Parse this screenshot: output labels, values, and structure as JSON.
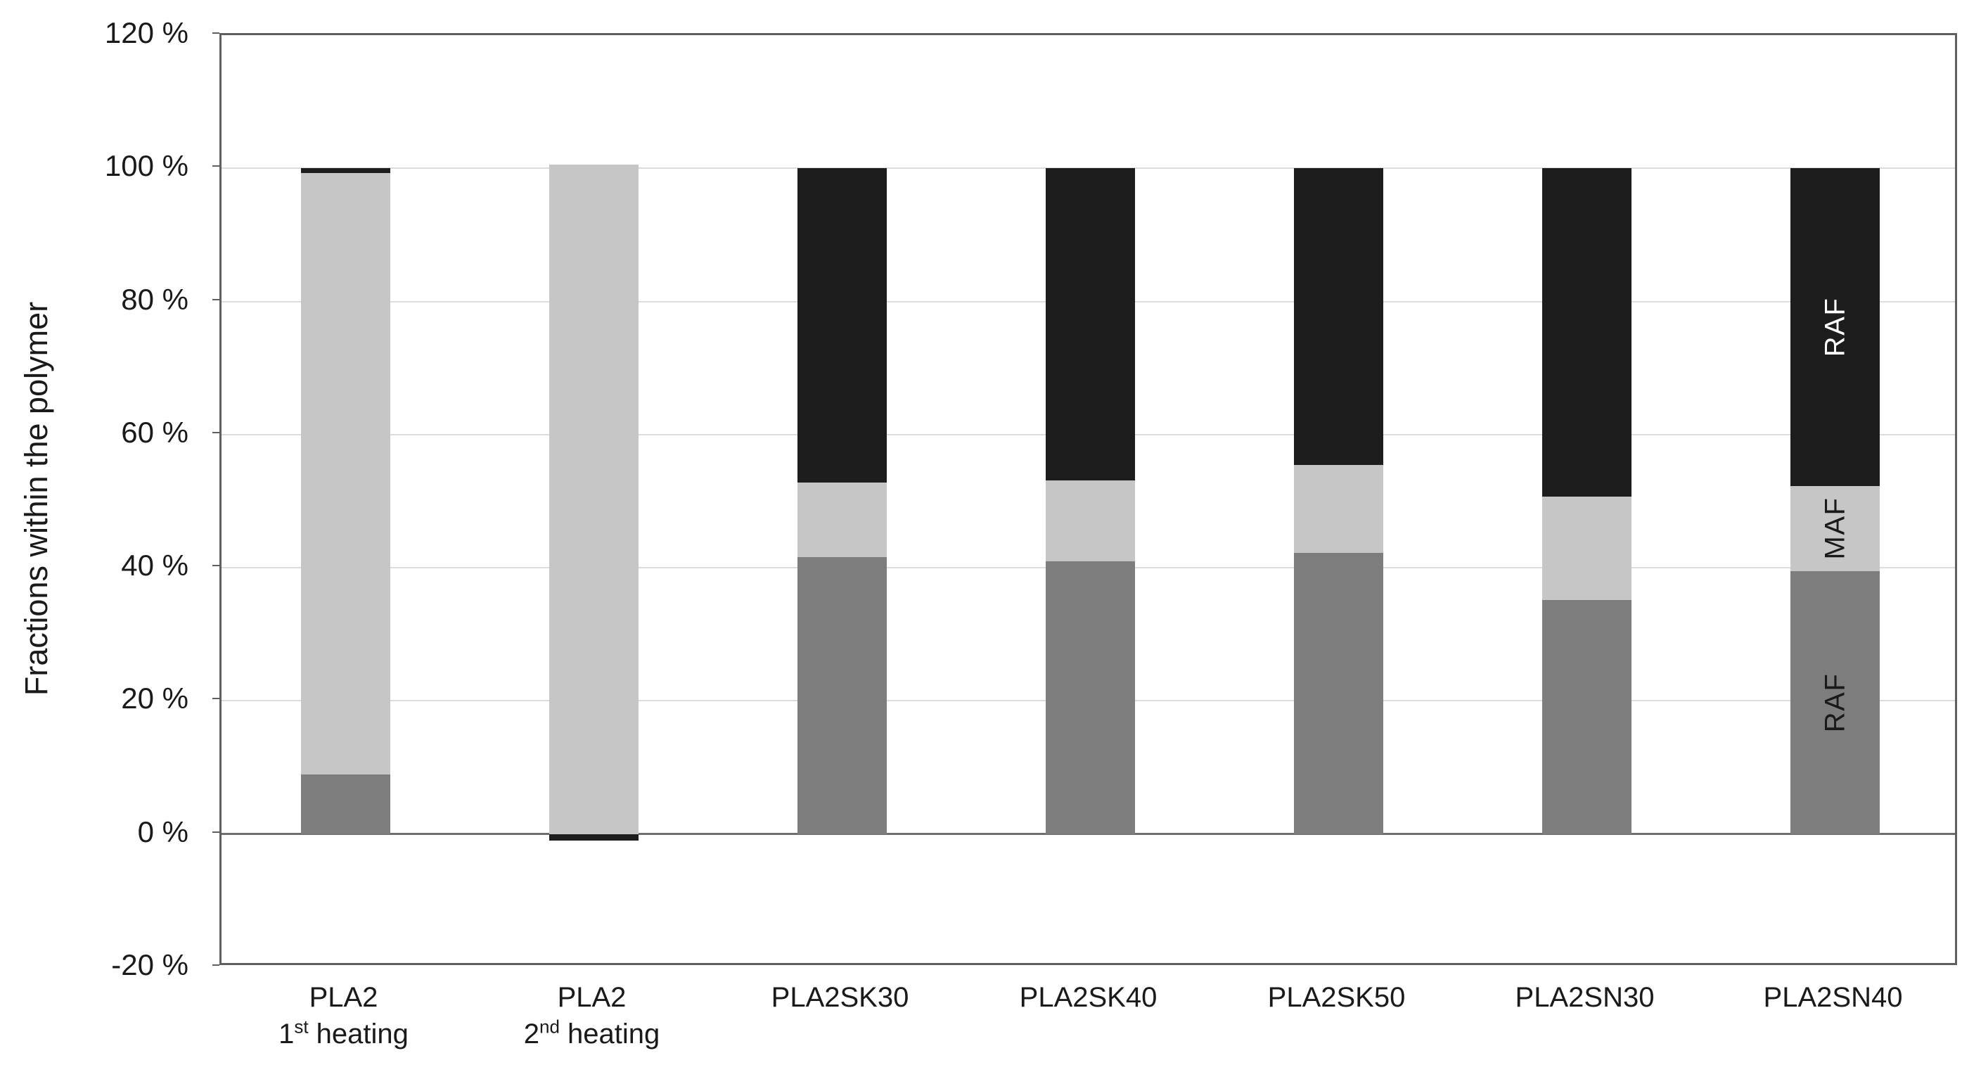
{
  "figure": {
    "background": "#ffffff",
    "text_color": "#1a1a1a"
  },
  "chart_data": {
    "type": "stacked-bar",
    "title": "",
    "xlabel": "",
    "ylabel": "Fractions within the polymer",
    "y_min": -20,
    "y_max": 120,
    "y_tick_step": 20,
    "grid": true,
    "y_ticks": [
      {
        "label": "120 %",
        "value": 120
      },
      {
        "label": "100 %",
        "value": 100
      },
      {
        "label": "80 %",
        "value": 80
      },
      {
        "label": "60 %",
        "value": 60
      },
      {
        "label": "40 %",
        "value": 40
      },
      {
        "label": "20 %",
        "value": 20
      },
      {
        "label": "0 %",
        "value": 0
      },
      {
        "label": "-20 %",
        "value": -20
      }
    ],
    "gridline_values": [
      100,
      80,
      60,
      40,
      20
    ],
    "categories": [
      {
        "line1": "PLA2",
        "line2_parts": [
          {
            "t": "1"
          },
          {
            "t": "st",
            "sup": true
          },
          {
            "t": " heating"
          }
        ]
      },
      {
        "line1": "PLA2",
        "line2_parts": [
          {
            "t": "2"
          },
          {
            "t": "nd",
            "sup": true
          },
          {
            "t": " heating"
          }
        ]
      },
      {
        "line1": "PLA2SK30",
        "line2_parts": []
      },
      {
        "line1": "PLA2SK40",
        "line2_parts": []
      },
      {
        "line1": "PLA2SK50",
        "line2_parts": []
      },
      {
        "line1": "PLA2SN30",
        "line2_parts": []
      },
      {
        "line1": "PLA2SN40",
        "line2_parts": []
      }
    ],
    "series": [
      {
        "name": "bottom-dark-gray-segment",
        "label": "RAF",
        "color": "#7d7d7d",
        "values": [
          9.0,
          0,
          41.6,
          41.0,
          42.2,
          35.2,
          39.5
        ]
      },
      {
        "name": "middle-light-gray-segment",
        "label": "MAF",
        "color": "#c6c6c6",
        "values": [
          90.3,
          100.6,
          11.2,
          12.1,
          13.2,
          15.5,
          12.8
        ]
      },
      {
        "name": "top-black-segment",
        "label": "RAF",
        "color": "#1d1d1d",
        "values": [
          0.7,
          -1.0,
          47.2,
          46.9,
          44.6,
          49.3,
          47.7
        ]
      }
    ],
    "segment_labels": [
      {
        "category_index": 6,
        "series_index": 0,
        "text": "RAF",
        "color": "#1a1a1a"
      },
      {
        "category_index": 6,
        "series_index": 1,
        "text": "MAF",
        "color": "#1a1a1a"
      },
      {
        "category_index": 6,
        "series_index": 2,
        "text": "RAF",
        "color": "#ffffff"
      }
    ],
    "colors": {
      "gridline": "#dcdcdc",
      "zero_axis": "#6e6e6e",
      "frame": "#5f5f5f",
      "tick": "#5f5f5f"
    }
  }
}
